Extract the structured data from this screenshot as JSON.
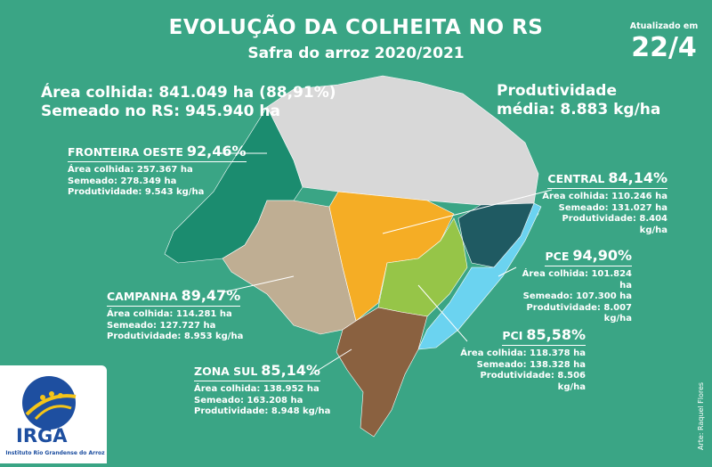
{
  "header": {
    "title": "EVOLUÇÃO DA COLHEITA NO RS",
    "subtitle": "Safra do arroz 2020/2021",
    "updated_label": "Atualizado em",
    "updated_date": "22/4"
  },
  "summary": {
    "area_colhida": "Área colhida: 841.049 ha (88,91%)",
    "semeado": "Semeado no RS: 945.940 ha",
    "produtividade_label": "Produtividade",
    "produtividade_value": "média: 8.883 kg/ha"
  },
  "regions": {
    "fronteira_oeste": {
      "name": "FRONTEIRA OESTE",
      "pct": "92,46%",
      "area": "Área colhida: 257.367 ha",
      "semeado": "Semeado: 278.349 ha",
      "prod": "Produtividade: 9.543 kg/ha",
      "color": "#1b8c6f"
    },
    "central": {
      "name": "CENTRAL",
      "pct": "84,14%",
      "area": "Área colhida: 110.246 ha",
      "semeado": "Semeado: 131.027 ha",
      "prod": "Produtividade: 8.404 kg/ha",
      "color": "#f5ad25"
    },
    "pce": {
      "name": "PCE",
      "pct": "94,90%",
      "area": "Área colhida: 101.824 ha",
      "semeado": "Semeado: 107.300 ha",
      "prod": "Produtividade: 8.007 kg/ha",
      "color": "#1f5a62"
    },
    "campanha": {
      "name": "CAMPANHA",
      "pct": "89,47%",
      "area": "Área colhida: 114.281 ha",
      "semeado": "Semeado: 127.727 ha",
      "prod": "Produtividade: 8.953 kg/ha",
      "color": "#bfae93"
    },
    "pci": {
      "name": "PCI",
      "pct": "85,58%",
      "area": "Área colhida: 118.378 ha",
      "semeado": "Semeado: 138.328 ha",
      "prod": "Produtividade: 8.506 kg/ha",
      "color": "#96c548"
    },
    "zona_sul": {
      "name": "ZONA SUL",
      "pct": "85,14%",
      "area": "Área colhida: 138.952 ha",
      "semeado": "Semeado: 163.208 ha",
      "prod": "Produtividade: 8.948 kg/ha",
      "color": "#8a6140"
    },
    "litoral": {
      "color": "#6bd3f0"
    },
    "north": {
      "color": "#d8d8d8"
    }
  },
  "logo": {
    "name": "IRGA",
    "subtitle": "Instituto Rio Grandense do Arroz"
  },
  "credit": "Arte: Raquel Flores"
}
